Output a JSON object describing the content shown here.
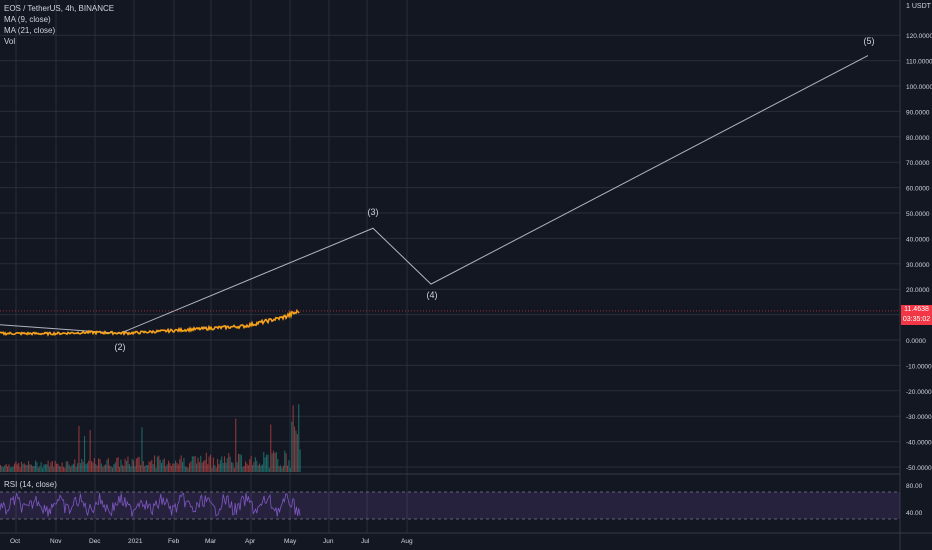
{
  "legend": {
    "symbol": "EOS / TetherUS, 4h, BINANCE",
    "ma9": "MA (9, close)",
    "ma21": "MA (21, close)",
    "vol": "Vol"
  },
  "rsi_label": "RSI (14, close)",
  "scale": {
    "unit": "USDT",
    "unit_value": "1"
  },
  "last_price": {
    "value": "11.4638",
    "countdown": "03:35:02"
  },
  "wave_labels": [
    "(2)",
    "(3)",
    "(4)",
    "(5)"
  ],
  "colors": {
    "background": "#131722",
    "grid": "#2a2e39",
    "price_line": "#f7a21b",
    "projection_line": "#b2b5be",
    "volume": "#26a69a",
    "rsi_line": "#7e57c2",
    "rsi_band": "#7e57c2",
    "last_price": "#f23645"
  },
  "chart_data": {
    "type": "line",
    "title": "EOS / TetherUS, 4h, BINANCE",
    "x_ticks": [
      "Oct",
      "Nov",
      "Dec",
      "2021",
      "Feb",
      "Mar",
      "Apr",
      "May",
      "Jun",
      "Jul",
      "Aug"
    ],
    "y_ticks": [
      "120.0000",
      "110.0000",
      "100.0000",
      "90.0000",
      "80.0000",
      "70.0000",
      "60.0000",
      "50.0000",
      "40.0000",
      "30.0000",
      "20.0000",
      "10.0000",
      "0.0000",
      "-10.0000",
      "-20.0000",
      "-30.0000",
      "-40.0000",
      "-50.0000"
    ],
    "ylim": [
      -52,
      125
    ],
    "series": [
      {
        "values_by_month": [
          {
            "x": "Oct",
            "y": 2.6
          },
          {
            "x": "Nov",
            "y": 2.5
          },
          {
            "x": "Dec",
            "y": 3.0
          },
          {
            "x": "2021",
            "y": 2.7
          },
          {
            "x": "Feb",
            "y": 3.6
          },
          {
            "x": "Mar",
            "y": 4.5
          },
          {
            "x": "Apr",
            "y": 5.5
          },
          {
            "x": "May",
            "y": 9.0
          },
          {
            "x": "May",
            "y": 11.46
          }
        ]
      }
    ],
    "wave_projection": [
      {
        "label": "(2)",
        "x": "Dec",
        "y": 2.6
      },
      {
        "label": "(3)",
        "x": "Jul",
        "y": 44.0
      },
      {
        "label": "(4)",
        "x": "Aug",
        "y": 22.0
      },
      {
        "label": "(5)",
        "y": 112.0
      }
    ],
    "rsi": {
      "y_ticks": [
        "80.00",
        "40.00"
      ],
      "upper_band": 70,
      "lower_band": 30
    }
  }
}
